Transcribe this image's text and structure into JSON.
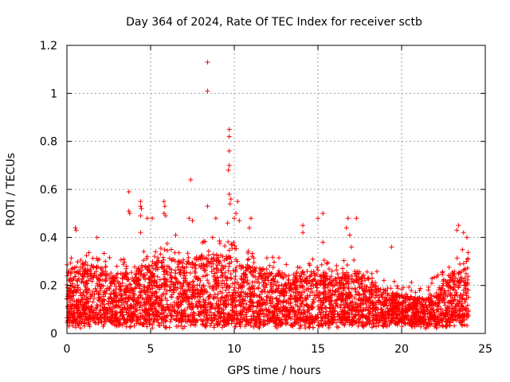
{
  "chart_data": {
    "type": "scatter",
    "title": "Day 364 of 2024, Rate Of TEC Index for receiver sctb",
    "xlabel": "GPS time / hours",
    "ylabel": "ROTI / TECUs",
    "xlim": [
      0,
      25
    ],
    "ylim": [
      0,
      1.2
    ],
    "x_ticks": [
      0,
      5,
      10,
      15,
      20,
      25
    ],
    "x_tick_labels": [
      "0",
      "5",
      "10",
      "15",
      "20",
      "25"
    ],
    "y_ticks": [
      0,
      0.2,
      0.4,
      0.6,
      0.8,
      1.0,
      1.2
    ],
    "y_tick_labels": [
      "0",
      "0.2",
      "0.4",
      "0.6",
      "0.8",
      "1",
      "1.2"
    ],
    "grid": true,
    "marker": "+",
    "marker_color": "#ff0000",
    "series": [
      {
        "name": "ROTI",
        "density_note": "dense band of points between 0 and ~0.3 TECU spanning 0-24 h; generated procedurally from envelope",
        "envelope_x": [
          0,
          1,
          2,
          3,
          4,
          5,
          6,
          7,
          8,
          9,
          10,
          11,
          12,
          13,
          14,
          15,
          16,
          17,
          18,
          19,
          20,
          21,
          22,
          23,
          24
        ],
        "envelope_y": [
          0.26,
          0.3,
          0.28,
          0.25,
          0.26,
          0.3,
          0.32,
          0.3,
          0.33,
          0.33,
          0.32,
          0.28,
          0.27,
          0.25,
          0.26,
          0.26,
          0.25,
          0.26,
          0.24,
          0.18,
          0.16,
          0.15,
          0.18,
          0.26,
          0.32
        ],
        "outliers": [
          {
            "x": 0.5,
            "y": 0.44
          },
          {
            "x": 0.55,
            "y": 0.43
          },
          {
            "x": 1.8,
            "y": 0.4
          },
          {
            "x": 3.7,
            "y": 0.59
          },
          {
            "x": 3.7,
            "y": 0.51
          },
          {
            "x": 3.75,
            "y": 0.5
          },
          {
            "x": 4.4,
            "y": 0.55
          },
          {
            "x": 4.4,
            "y": 0.53
          },
          {
            "x": 4.45,
            "y": 0.52
          },
          {
            "x": 4.4,
            "y": 0.49
          },
          {
            "x": 4.8,
            "y": 0.48
          },
          {
            "x": 5.1,
            "y": 0.48
          },
          {
            "x": 4.4,
            "y": 0.42
          },
          {
            "x": 5.8,
            "y": 0.55
          },
          {
            "x": 5.85,
            "y": 0.53
          },
          {
            "x": 5.8,
            "y": 0.5
          },
          {
            "x": 5.9,
            "y": 0.49
          },
          {
            "x": 6.5,
            "y": 0.41
          },
          {
            "x": 7.4,
            "y": 0.64
          },
          {
            "x": 7.3,
            "y": 0.48
          },
          {
            "x": 7.5,
            "y": 0.47
          },
          {
            "x": 8.4,
            "y": 1.13
          },
          {
            "x": 8.4,
            "y": 1.01
          },
          {
            "x": 8.4,
            "y": 0.53
          },
          {
            "x": 8.9,
            "y": 0.48
          },
          {
            "x": 8.7,
            "y": 0.4
          },
          {
            "x": 9.7,
            "y": 0.85
          },
          {
            "x": 9.7,
            "y": 0.82
          },
          {
            "x": 9.7,
            "y": 0.76
          },
          {
            "x": 9.7,
            "y": 0.7
          },
          {
            "x": 9.65,
            "y": 0.68
          },
          {
            "x": 9.7,
            "y": 0.58
          },
          {
            "x": 9.8,
            "y": 0.56
          },
          {
            "x": 9.75,
            "y": 0.54
          },
          {
            "x": 10.2,
            "y": 0.55
          },
          {
            "x": 10.1,
            "y": 0.5
          },
          {
            "x": 10.0,
            "y": 0.48
          },
          {
            "x": 10.3,
            "y": 0.47
          },
          {
            "x": 9.6,
            "y": 0.46
          },
          {
            "x": 11.0,
            "y": 0.48
          },
          {
            "x": 10.9,
            "y": 0.44
          },
          {
            "x": 14.1,
            "y": 0.45
          },
          {
            "x": 14.1,
            "y": 0.42
          },
          {
            "x": 15.0,
            "y": 0.48
          },
          {
            "x": 15.3,
            "y": 0.5
          },
          {
            "x": 15.3,
            "y": 0.38
          },
          {
            "x": 16.8,
            "y": 0.48
          },
          {
            "x": 16.7,
            "y": 0.44
          },
          {
            "x": 16.9,
            "y": 0.41
          },
          {
            "x": 17.3,
            "y": 0.48
          },
          {
            "x": 17.0,
            "y": 0.36
          },
          {
            "x": 19.4,
            "y": 0.36
          },
          {
            "x": 23.4,
            "y": 0.45
          },
          {
            "x": 23.3,
            "y": 0.43
          },
          {
            "x": 23.7,
            "y": 0.42
          },
          {
            "x": 23.9,
            "y": 0.4
          }
        ]
      }
    ]
  }
}
